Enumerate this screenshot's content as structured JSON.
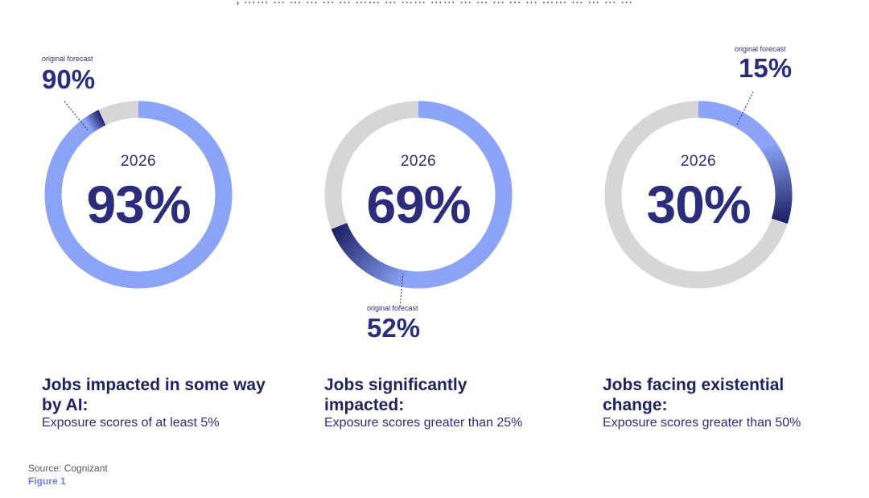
{
  "header": {
    "cut_text": ", …… … … … …    … …… … …… …… … … … … …   …… … … … …"
  },
  "chart_data": [
    {
      "type": "pie",
      "center_label": "2026",
      "value": 93,
      "value_label": "93%",
      "forecast_label": "original forecast",
      "forecast_value": 90,
      "forecast_value_label": "90%",
      "title": "Jobs impacted in some way by AI:",
      "subtitle": "Exposure scores of at least 5%"
    },
    {
      "type": "pie",
      "center_label": "2026",
      "value": 69,
      "value_label": "69%",
      "forecast_label": "original forecast",
      "forecast_value": 52,
      "forecast_value_label": "52%",
      "title": "Jobs significantly impacted:",
      "subtitle": "Exposure scores greater than 25%"
    },
    {
      "type": "pie",
      "center_label": "2026",
      "value": 30,
      "value_label": "30%",
      "forecast_label": "original forecast",
      "forecast_value": 15,
      "forecast_value_label": "15%",
      "title": "Jobs facing existential change:",
      "subtitle": "Exposure scores greater than 50%"
    }
  ],
  "colors": {
    "actual": "#8ba4f7",
    "remainder": "#d6d6d6",
    "gradient_dark": "#1e2266",
    "gradient_light": "#8ba4f7",
    "text": "#2b2d7a"
  },
  "footer": {
    "source": "Source: Cognizant",
    "figure": "Figure 1"
  }
}
